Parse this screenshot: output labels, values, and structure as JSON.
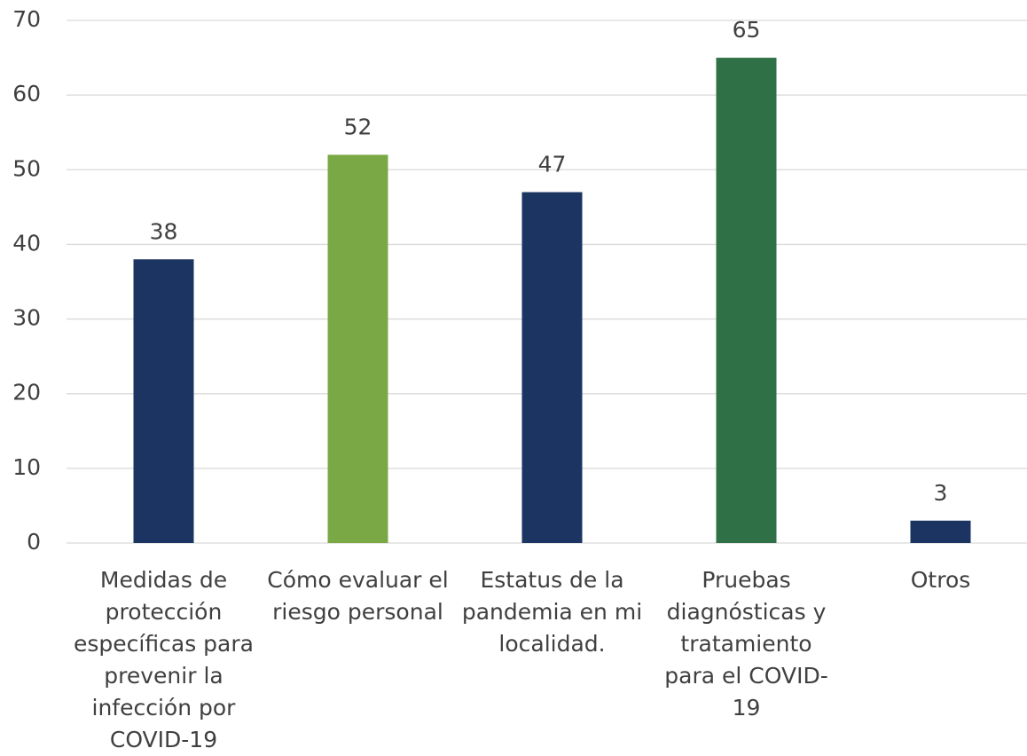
{
  "chart_data": {
    "type": "bar",
    "categories": [
      "Medidas de protección específicas para prevenir la infección por COVID-19",
      "Cómo evaluar el riesgo personal",
      "Estatus de la pandemia en mi localidad.",
      "Pruebas diagnósticas y tratamiento para el COVID-19",
      "Otros"
    ],
    "values": [
      38,
      52,
      47,
      65,
      3
    ],
    "colors": [
      "#1b3461",
      "#7aa845",
      "#1b3461",
      "#2f7046",
      "#1b3461"
    ],
    "ylim": [
      0,
      70
    ],
    "yticks": [
      0,
      10,
      20,
      30,
      40,
      50,
      60,
      70
    ],
    "grid": true
  }
}
